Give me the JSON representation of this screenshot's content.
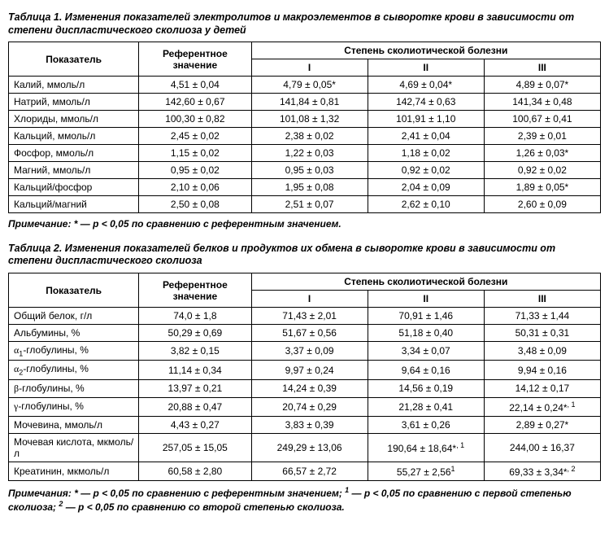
{
  "table1": {
    "caption": "Таблица 1. Изменения показателей электролитов и макроэлементов в сыворотке крови в зависимости от степени диспластического сколиоза у детей",
    "headers": {
      "indicator": "Показатель",
      "reference": "Референтное значение",
      "degree_group": "Степень сколиотической болезни",
      "deg1": "I",
      "deg2": "II",
      "deg3": "III"
    },
    "rows": [
      {
        "label": "Калий, ммоль/л",
        "ref": "4,51 ± 0,04",
        "d1": "4,79 ± 0,05*",
        "d2": "4,69 ± 0,04*",
        "d3": "4,89 ± 0,07*"
      },
      {
        "label": "Натрий, ммоль/л",
        "ref": "142,60 ± 0,67",
        "d1": "141,84 ± 0,81",
        "d2": "142,74 ± 0,63",
        "d3": "141,34 ± 0,48"
      },
      {
        "label": "Хлориды, ммоль/л",
        "ref": "100,30 ± 0,82",
        "d1": "101,08 ± 1,32",
        "d2": "101,91 ± 1,10",
        "d3": "100,67 ± 0,41"
      },
      {
        "label": "Кальций, ммоль/л",
        "ref": "2,45 ± 0,02",
        "d1": "2,38 ± 0,02",
        "d2": "2,41 ± 0,04",
        "d3": "2,39 ± 0,01"
      },
      {
        "label": "Фосфор, ммоль/л",
        "ref": "1,15 ± 0,02",
        "d1": "1,22 ± 0,03",
        "d2": "1,18 ± 0,02",
        "d3": "1,26 ± 0,03*"
      },
      {
        "label": "Магний, ммоль/л",
        "ref": "0,95 ± 0,02",
        "d1": "0,95 ± 0,03",
        "d2": "0,92 ± 0,02",
        "d3": "0,92 ± 0,02"
      },
      {
        "label": "Кальций/фосфор",
        "ref": "2,10 ± 0,06",
        "d1": "1,95 ± 0,08",
        "d2": "2,04 ± 0,09",
        "d3": "1,89 ± 0,05*"
      },
      {
        "label": "Кальций/магний",
        "ref": "2,50 ± 0,08",
        "d1": "2,51 ± 0,07",
        "d2": "2,62 ± 0,10",
        "d3": "2,60 ± 0,09"
      }
    ],
    "note": "Примечание: * — p < 0,05 по сравнению с референтным значением."
  },
  "table2": {
    "caption": "Таблица 2. Изменения показателей белков и продуктов их обмена в сыворотке крови в зависимости от степени диспластического сколиоза",
    "headers": {
      "indicator": "Показатель",
      "reference": "Референтное значение",
      "degree_group": "Степень сколиотической болезни",
      "deg1": "I",
      "deg2": "II",
      "deg3": "III"
    },
    "rows": [
      {
        "label": "Общий белок, г/л",
        "ref": "74,0 ± 1,8",
        "d1": "71,43 ± 2,01",
        "d2": "70,91 ± 1,46",
        "d3": "71,33 ± 1,44"
      },
      {
        "label": "Альбумины, %",
        "ref": "50,29 ± 0,69",
        "d1": "51,67 ± 0,56",
        "d2": "51,18 ± 0,40",
        "d3": "50,31 ± 0,31"
      },
      {
        "label_html": "<span class='greek'>α</span><sub>1</sub>-глобулины, %",
        "ref": "3,82 ± 0,15",
        "d1": "3,37 ± 0,09",
        "d2": "3,34 ± 0,07",
        "d3": "3,48 ± 0,09"
      },
      {
        "label_html": "<span class='greek'>α</span><sub>2</sub>-глобулины, %",
        "ref": "11,14 ± 0,34",
        "d1": "9,97 ± 0,24",
        "d2": "9,64 ± 0,16",
        "d3": "9,94 ± 0,16"
      },
      {
        "label_html": "<span class='greek'>β</span>-глобулины, %",
        "ref": "13,97 ± 0,21",
        "d1": "14,24 ± 0,39",
        "d2": "14,56 ± 0,19",
        "d3": "14,12 ± 0,17"
      },
      {
        "label_html": "<span class='greek'>γ</span>-глобулины, %",
        "ref": "20,88 ± 0,47",
        "d1": "20,74 ± 0,29",
        "d2": "21,28 ± 0,41",
        "d3_html": "22,14 ± 0,24*<sup>, 1</sup>"
      },
      {
        "label": "Мочевина, ммоль/л",
        "ref": "4,43 ± 0,27",
        "d1": "3,83 ± 0,39",
        "d2": "3,61 ± 0,26",
        "d3": "2,89 ± 0,27*"
      },
      {
        "label": "Мочевая кислота, мкмоль/л",
        "ref": "257,05 ± 15,05",
        "d1": "249,29 ± 13,06",
        "d2_html": "190,64 ± 18,64*<sup>, 1</sup>",
        "d3": "244,00 ± 16,37"
      },
      {
        "label": "Креатинин, мкмоль/л",
        "ref": "60,58 ± 2,80",
        "d1": "66,57 ± 2,72",
        "d2_html": "55,27 ± 2,56<sup>1</sup>",
        "d3_html": "69,33 ± 3,34*<sup>, 2</sup>"
      }
    ],
    "note_html": "Примечания: * — p < 0,05 по сравнению с референтным значением; <sup>1</sup> — p < 0,05 по сравнению с первой степенью сколиоза; <sup>2</sup> — p < 0,05 по сравнению со второй степенью сколиоза."
  },
  "col_widths": {
    "label": "22%",
    "ref": "19%",
    "deg": "19.66%"
  }
}
